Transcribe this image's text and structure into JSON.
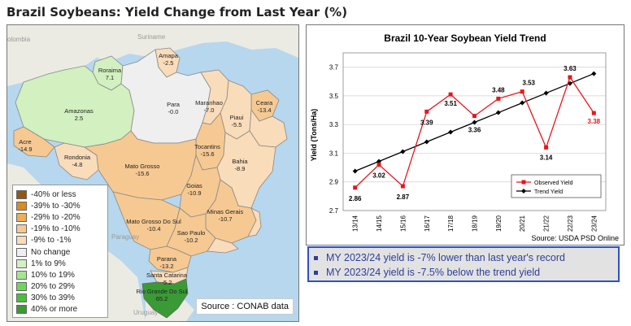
{
  "title": "Brazil Soybeans: Yield Change from Last Year (%)",
  "map": {
    "neighbors": [
      "olombia",
      "Suriname",
      "Paraguay",
      "Uruguay"
    ],
    "states": [
      {
        "name": "Roraima",
        "value": "7.1",
        "color": "#d2f0c0"
      },
      {
        "name": "Amapa",
        "value": "-2.5",
        "color": "#f9dcb9"
      },
      {
        "name": "Amazonas",
        "value": "2.5",
        "color": "#d2f0c0"
      },
      {
        "name": "Para",
        "value": "-0.0",
        "color": "#efefef"
      },
      {
        "name": "Maranhao",
        "value": "-7.0",
        "color": "#f9dcb9"
      },
      {
        "name": "Ceara",
        "value": "-13.4",
        "color": "#f6c992"
      },
      {
        "name": "Piaui",
        "value": "-5.5",
        "color": "#f9dcb9"
      },
      {
        "name": "Acre",
        "value": "-14.9",
        "color": "#f6c992"
      },
      {
        "name": "Rondonia",
        "value": "-4.8",
        "color": "#f9dcb9"
      },
      {
        "name": "Tocantins",
        "value": "-15.6",
        "color": "#f6c992"
      },
      {
        "name": "Bahia",
        "value": "-8.9",
        "color": "#f9dcb9"
      },
      {
        "name": "Mato Grosso",
        "value": "-15.6",
        "color": "#f6c992"
      },
      {
        "name": "Goias",
        "value": "-10.9",
        "color": "#f6c992"
      },
      {
        "name": "Minas Gerais",
        "value": "-10.7",
        "color": "#f6c992"
      },
      {
        "name": "Mato Grosso Do Sul",
        "value": "-10.4",
        "color": "#f6c992"
      },
      {
        "name": "Sao Paulo",
        "value": "-10.2",
        "color": "#f6c992"
      },
      {
        "name": "Parana",
        "value": "-13.2",
        "color": "#f6c992"
      },
      {
        "name": "Santa Catarina",
        "value": "-5.2",
        "color": "#f9dcb9"
      },
      {
        "name": "Rio Grande Do Sul",
        "value": "65.2",
        "color": "#3a9a35"
      }
    ],
    "legend": [
      {
        "label": "-40% or less",
        "color": "#8e5a17"
      },
      {
        "label": "-39% to -30%",
        "color": "#d98c1f"
      },
      {
        "label": "-29% to -20%",
        "color": "#f0ad52"
      },
      {
        "label": "-19% to -10%",
        "color": "#f6c992"
      },
      {
        "label": "-9% to -1%",
        "color": "#f9dcb9"
      },
      {
        "label": "No change",
        "color": "#efefef"
      },
      {
        "label": "1% to 9%",
        "color": "#d2f0c0"
      },
      {
        "label": "10% to 19%",
        "color": "#a6e590"
      },
      {
        "label": "20% to 29%",
        "color": "#6fd65a"
      },
      {
        "label": "30% to 39%",
        "color": "#4cbf3a"
      },
      {
        "label": "40% or more",
        "color": "#3a9a35"
      }
    ],
    "source": "Source : CONAB data"
  },
  "chart_data": {
    "type": "line",
    "title": "Brazil 10-Year Soybean Yield Trend",
    "xlabel": "",
    "ylabel": "Yield (Tons/Ha)",
    "categories": [
      "13/14",
      "14/15",
      "15/16",
      "16/17",
      "17/18",
      "18/19",
      "19/20",
      "20/21",
      "21/22",
      "22/23",
      "23/24"
    ],
    "ylim": [
      2.7,
      3.8
    ],
    "yticks": [
      "2.7",
      "2.9",
      "3.1",
      "3.3",
      "3.5",
      "3.7"
    ],
    "series": [
      {
        "name": "Observed Yield",
        "color": "#e8161b",
        "values": [
          2.86,
          3.02,
          2.87,
          3.39,
          3.51,
          3.36,
          3.48,
          3.53,
          3.14,
          3.63,
          3.38
        ],
        "labels": [
          "2.86",
          "3.02",
          "2.87",
          "3.39",
          "3.51",
          "3.36",
          "3.48",
          "3.53",
          "3.14",
          "3.63",
          "3.38"
        ]
      },
      {
        "name": "Trend Yield",
        "color": "#000000",
        "values": [
          2.975,
          3.043,
          3.111,
          3.179,
          3.247,
          3.315,
          3.383,
          3.451,
          3.519,
          3.587,
          3.655
        ]
      }
    ],
    "legend_position": "bottom-right",
    "grid": true,
    "source": "Source: USDA PSD Online"
  },
  "notes": [
    "MY 2023/24 yield is -7% lower than last year's record",
    "MY 2023/24 yield is -7.5% below the trend yield"
  ]
}
